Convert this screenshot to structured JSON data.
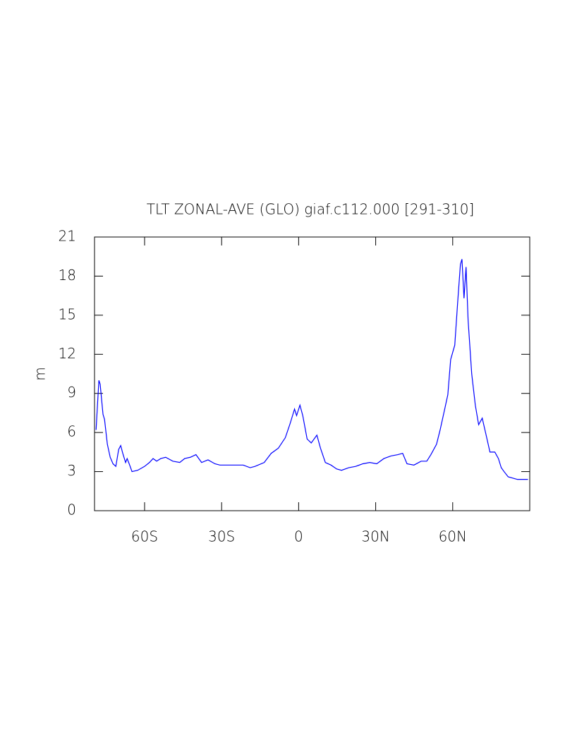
{
  "chart_data": {
    "type": "line",
    "title": "TLT ZONAL-AVE (GLO) giaf.c112.000 [291-310]",
    "y_label": "m",
    "xlim": [
      -79.5,
      90
    ],
    "ylim": [
      0,
      21
    ],
    "xticks": [
      {
        "value": -60,
        "label": "60S"
      },
      {
        "value": -30,
        "label": "30S"
      },
      0,
      {
        "value": 30,
        "label": "30N"
      },
      {
        "value": 60,
        "label": "60N"
      }
    ],
    "yticks": [
      0,
      3,
      6,
      9,
      12,
      15,
      18,
      21
    ],
    "series": [
      {
        "color": "#0000ff",
        "x": [
          -78.9,
          -77.8,
          -77.3,
          -76.2,
          -75.6,
          -74.5,
          -73.4,
          -72.3,
          -71.2,
          -70.1,
          -69.3,
          -68.5,
          -67.4,
          -66.8,
          -66.0,
          -64.9,
          -62.7,
          -60,
          -58.1,
          -56.7,
          -55.3,
          -53.7,
          -51.8,
          -49.0,
          -46.3,
          -44.4,
          -42.2,
          -40.0,
          -37.8,
          -35.3,
          -32.6,
          -30.7,
          -25.8,
          -21.6,
          -18.9,
          -17.0,
          -13.4,
          -10.7,
          -7.9,
          -5.2,
          -3.3,
          -1.6,
          -0.8,
          0.5,
          1.6,
          3.3,
          4.9,
          7.1,
          8.5,
          10.4,
          12.6,
          14.8,
          16.7,
          19.5,
          22.2,
          25.0,
          27.7,
          30.4,
          33.2,
          35.9,
          38.6,
          40.5,
          42.2,
          44.9,
          47.7,
          49.9,
          51.5,
          53.7,
          55.1,
          57.0,
          58.1,
          59.2,
          60.8,
          61.9,
          63.0,
          63.6,
          64.4,
          65.2,
          66.0,
          67.4,
          68.8,
          70.1,
          71.5,
          72.9,
          74.5,
          76.4,
          77.8,
          78.9,
          80.0,
          81.6,
          85.2,
          89.3
        ],
        "values": [
          6.2,
          10.0,
          9.7,
          7.4,
          7.0,
          5.1,
          4.1,
          3.6,
          3.4,
          4.7,
          5.0,
          4.4,
          3.7,
          4.0,
          3.6,
          3.0,
          3.1,
          3.4,
          3.7,
          4.0,
          3.8,
          4.0,
          4.1,
          3.8,
          3.7,
          4.0,
          4.1,
          4.3,
          3.7,
          3.9,
          3.6,
          3.5,
          3.5,
          3.5,
          3.3,
          3.4,
          3.7,
          4.4,
          4.8,
          5.6,
          6.7,
          7.8,
          7.3,
          8.1,
          7.3,
          5.5,
          5.2,
          5.8,
          4.8,
          3.7,
          3.5,
          3.2,
          3.1,
          3.3,
          3.4,
          3.6,
          3.7,
          3.6,
          4.0,
          4.2,
          4.3,
          4.4,
          3.6,
          3.5,
          3.8,
          3.8,
          4.3,
          5.1,
          6.2,
          7.9,
          8.9,
          11.6,
          12.7,
          15.9,
          18.9,
          19.3,
          16.3,
          18.7,
          14.6,
          10.5,
          8.1,
          6.6,
          7.1,
          5.9,
          4.5,
          4.5,
          4.0,
          3.3,
          3.0,
          2.6,
          2.4,
          2.4
        ]
      }
    ]
  }
}
